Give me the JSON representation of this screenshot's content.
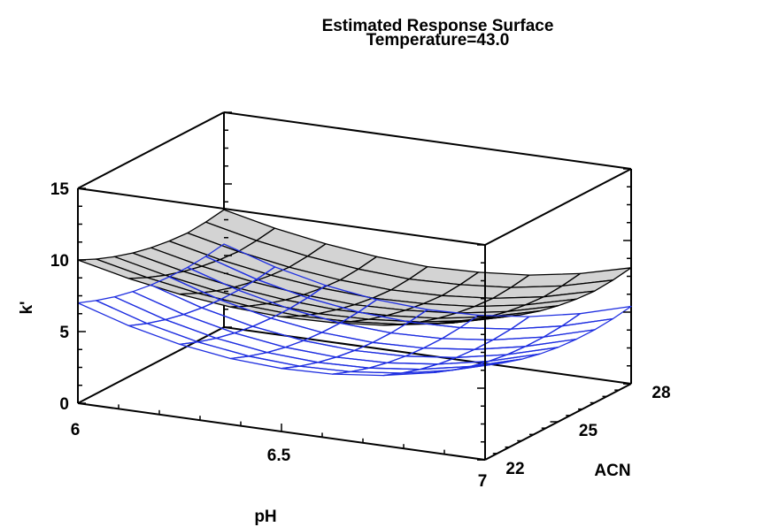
{
  "chart_data": {
    "type": "surface",
    "title": "Estimated Response Surface",
    "subtitle": "Temperature=43.0",
    "xlabel": "pH",
    "ylabel": "ACN",
    "zlabel": "k'",
    "x_ticks": [
      "6",
      "6.5",
      "7"
    ],
    "y_ticks": [
      "22",
      "25",
      "28"
    ],
    "z_ticks": [
      "0",
      "5",
      "10",
      "15"
    ],
    "xlim": [
      6,
      7
    ],
    "ylim": [
      22,
      28
    ],
    "zlim": [
      0,
      15
    ],
    "grid": "9x9",
    "series": [
      {
        "color": "#000000",
        "fill": "#d3d3d3",
        "rows_acn": [
          22,
          28
        ],
        "cols_ph": [
          6,
          7
        ],
        "z": [
          [
            10.0,
            9.2,
            8.6,
            8.2,
            8.0,
            8.1,
            8.4,
            9.0,
            9.9
          ],
          [
            9.4,
            8.6,
            8.0,
            7.6,
            7.4,
            7.5,
            7.8,
            8.4,
            9.3
          ],
          [
            8.9,
            8.1,
            7.5,
            7.1,
            6.9,
            7.0,
            7.3,
            7.9,
            8.8
          ],
          [
            8.5,
            7.7,
            7.1,
            6.7,
            6.5,
            6.6,
            6.9,
            7.5,
            8.4
          ],
          [
            8.2,
            7.4,
            6.8,
            6.4,
            6.2,
            6.3,
            6.6,
            7.2,
            8.1
          ],
          [
            8.0,
            7.2,
            6.6,
            6.2,
            6.0,
            6.1,
            6.4,
            7.0,
            7.9
          ],
          [
            7.9,
            7.1,
            6.5,
            6.1,
            5.9,
            6.0,
            6.3,
            6.9,
            7.8
          ],
          [
            8.0,
            7.2,
            6.6,
            6.2,
            6.0,
            6.1,
            6.4,
            7.0,
            7.9
          ],
          [
            8.2,
            7.4,
            6.8,
            6.4,
            6.2,
            6.3,
            6.6,
            7.2,
            8.1
          ]
        ]
      },
      {
        "color": "#1f2fe0",
        "fill": "none",
        "rows_acn": [
          22,
          28
        ],
        "cols_ph": [
          6,
          7
        ],
        "z": [
          [
            7.0,
            5.9,
            5.1,
            4.6,
            4.4,
            4.5,
            4.9,
            5.6,
            6.6
          ],
          [
            6.5,
            5.4,
            4.6,
            4.1,
            3.9,
            4.0,
            4.4,
            5.1,
            6.1
          ],
          [
            6.1,
            5.0,
            4.2,
            3.7,
            3.5,
            3.6,
            4.0,
            4.7,
            5.7
          ],
          [
            5.8,
            4.7,
            3.9,
            3.4,
            3.2,
            3.3,
            3.7,
            4.4,
            5.4
          ],
          [
            5.6,
            4.5,
            3.7,
            3.2,
            3.0,
            3.1,
            3.5,
            4.2,
            5.2
          ],
          [
            5.5,
            4.4,
            3.6,
            3.1,
            2.9,
            3.0,
            3.4,
            4.1,
            5.1
          ],
          [
            5.5,
            4.4,
            3.6,
            3.1,
            2.9,
            3.0,
            3.4,
            4.1,
            5.1
          ],
          [
            5.6,
            4.5,
            3.7,
            3.2,
            3.0,
            3.1,
            3.5,
            4.2,
            5.2
          ],
          [
            5.8,
            4.7,
            3.9,
            3.4,
            3.2,
            3.3,
            3.7,
            4.4,
            5.4
          ]
        ]
      }
    ]
  }
}
